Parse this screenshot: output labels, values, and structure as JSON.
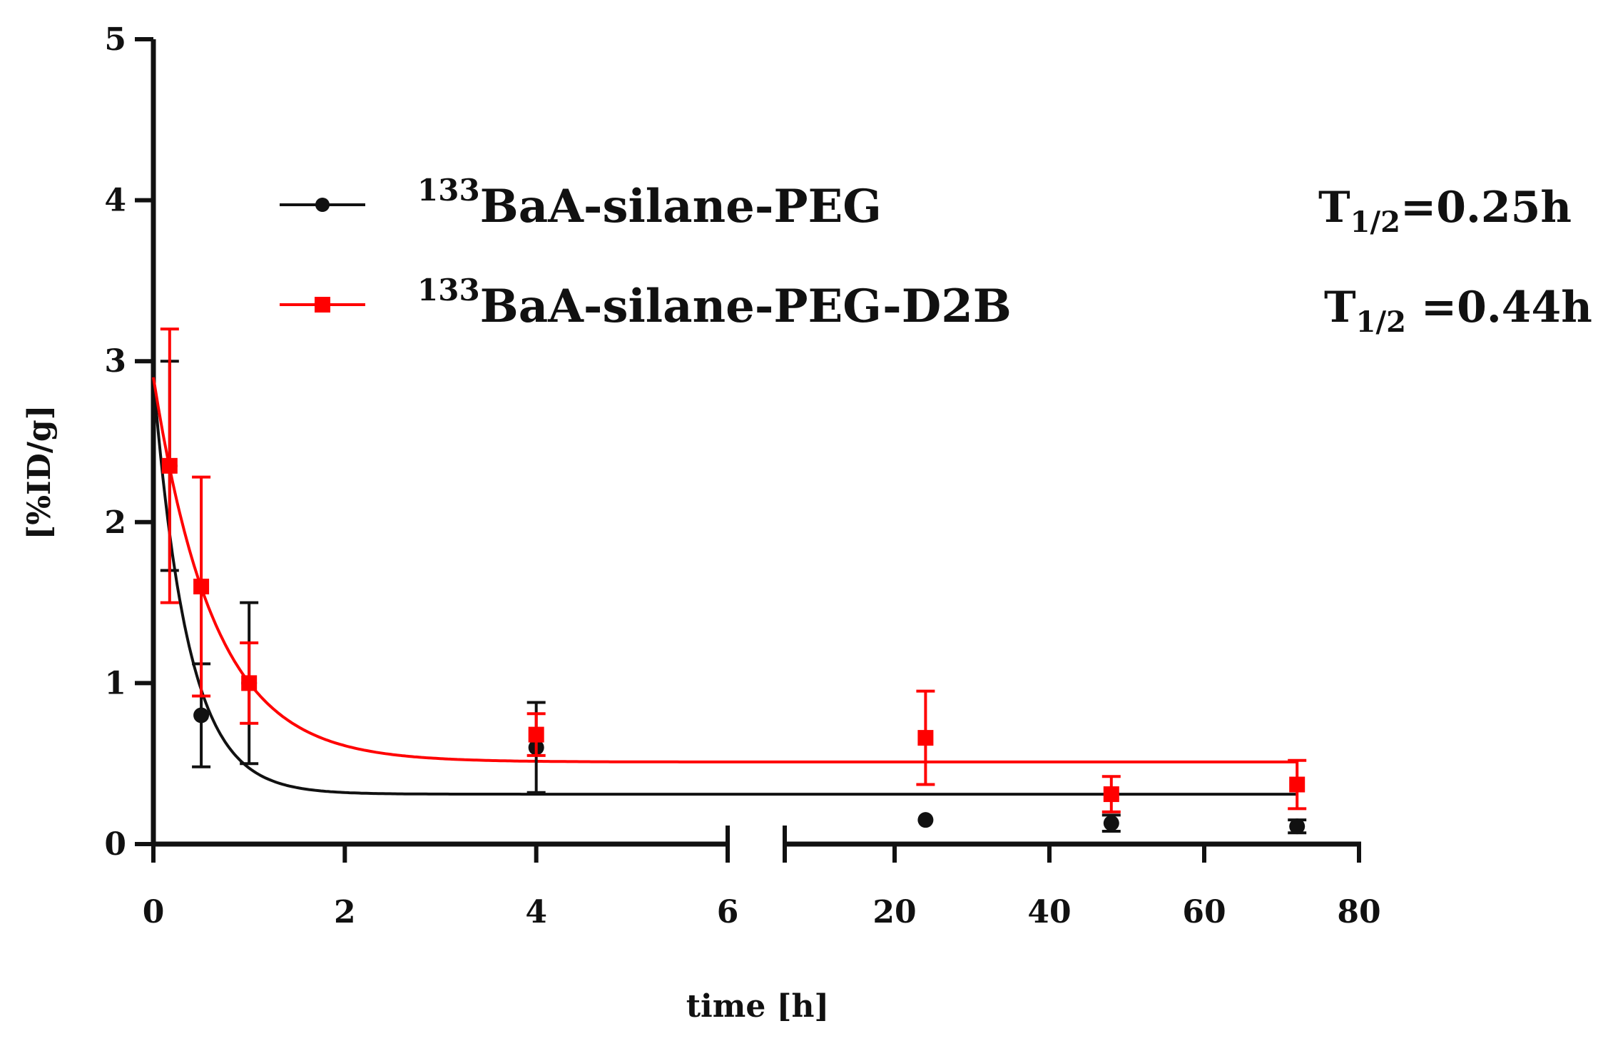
{
  "chart_data": {
    "type": "scatter",
    "title": "",
    "xlabel": "time [h]",
    "ylabel": "[%ID/g]",
    "ylim": [
      0,
      5
    ],
    "y_ticks": [
      "0",
      "1",
      "2",
      "3",
      "4",
      "5"
    ],
    "x_axis_segments": [
      {
        "range": [
          0,
          6
        ],
        "ticks": [
          "0",
          "2",
          "4",
          "6"
        ]
      },
      {
        "range": [
          6.5,
          80
        ],
        "ticks": [
          "20",
          "40",
          "60",
          "80"
        ]
      }
    ],
    "series": [
      {
        "name": "BaA-silane-PEG",
        "isotope": "133",
        "color": "#111111",
        "marker": "circle",
        "half_life": {
          "symbol": "T",
          "subscript": "1/2",
          "value": "=0.25h"
        },
        "points": [
          {
            "x": 0.17,
            "y": 2.35,
            "err": 0.65
          },
          {
            "x": 0.5,
            "y": 0.8,
            "err": 0.32
          },
          {
            "x": 1,
            "y": 1.0,
            "err": 0.5
          },
          {
            "x": 4,
            "y": 0.6,
            "err": 0.28
          },
          {
            "x": 24,
            "y": 0.15,
            "err": 0.0
          },
          {
            "x": 48,
            "y": 0.13,
            "err": 0.05
          },
          {
            "x": 72,
            "y": 0.11,
            "err": 0.04
          }
        ],
        "fit": {
          "model": "one-phase decay",
          "y0": 2.9,
          "plateau": 0.31,
          "k": 2.77
        }
      },
      {
        "name": "BaA-silane-PEG-D2B",
        "isotope": "133",
        "color": "#ff0000",
        "marker": "square",
        "half_life": {
          "symbol": "T",
          "subscript": "1/2",
          "value": " =0.44h"
        },
        "points": [
          {
            "x": 0.17,
            "y": 2.35,
            "err": 0.85
          },
          {
            "x": 0.5,
            "y": 1.6,
            "err": 0.68
          },
          {
            "x": 1,
            "y": 1.0,
            "err": 0.25
          },
          {
            "x": 4,
            "y": 0.68,
            "err": 0.13
          },
          {
            "x": 24,
            "y": 0.66,
            "err": 0.29
          },
          {
            "x": 48,
            "y": 0.31,
            "err": 0.11
          },
          {
            "x": 72,
            "y": 0.37,
            "err": 0.15
          }
        ],
        "fit": {
          "model": "one-phase decay",
          "y0": 2.9,
          "plateau": 0.51,
          "k": 1.58
        }
      }
    ]
  }
}
